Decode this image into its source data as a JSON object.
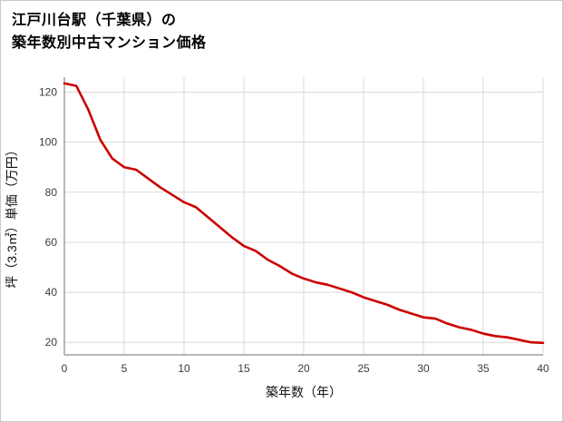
{
  "page": {
    "title_line1": "江戸川台駅（千葉県）の",
    "title_line2": "築年数別中古マンション価格"
  },
  "chart_data": {
    "type": "line",
    "title": "江戸川台駅（千葉県）の築年数別中古マンション価格",
    "xlabel": "築年数（年）",
    "ylabel": "坪（3.3㎡）単価（万円）",
    "x": [
      0,
      1,
      2,
      3,
      4,
      5,
      6,
      7,
      8,
      9,
      10,
      11,
      12,
      13,
      14,
      15,
      16,
      17,
      18,
      19,
      20,
      21,
      22,
      23,
      24,
      25,
      26,
      27,
      28,
      29,
      30,
      31,
      32,
      33,
      34,
      35,
      36,
      37,
      38,
      39,
      40
    ],
    "y": [
      123.5,
      122.5,
      113,
      101,
      93.5,
      90,
      89,
      85.5,
      82,
      79,
      76,
      74,
      70,
      66,
      62,
      58.5,
      56.5,
      53,
      50.5,
      47.5,
      45.5,
      44,
      43,
      41.5,
      40,
      38,
      36.5,
      35,
      33,
      31.5,
      30,
      29.5,
      27.5,
      26,
      25,
      23.5,
      22.5,
      22,
      21,
      20,
      19.8
    ],
    "xlim": [
      0,
      40
    ],
    "ylim": [
      15,
      126
    ],
    "x_ticks": [
      0,
      5,
      10,
      15,
      20,
      25,
      30,
      35,
      40
    ],
    "y_ticks": [
      20,
      40,
      60,
      80,
      100,
      120
    ],
    "grid": true,
    "legend": false,
    "line_color": "#cc0000",
    "line_width": 2.6,
    "grid_color": "#d9d9d9",
    "axis_color": "#8c8c8c",
    "tick_color": "#3c3c3c"
  }
}
